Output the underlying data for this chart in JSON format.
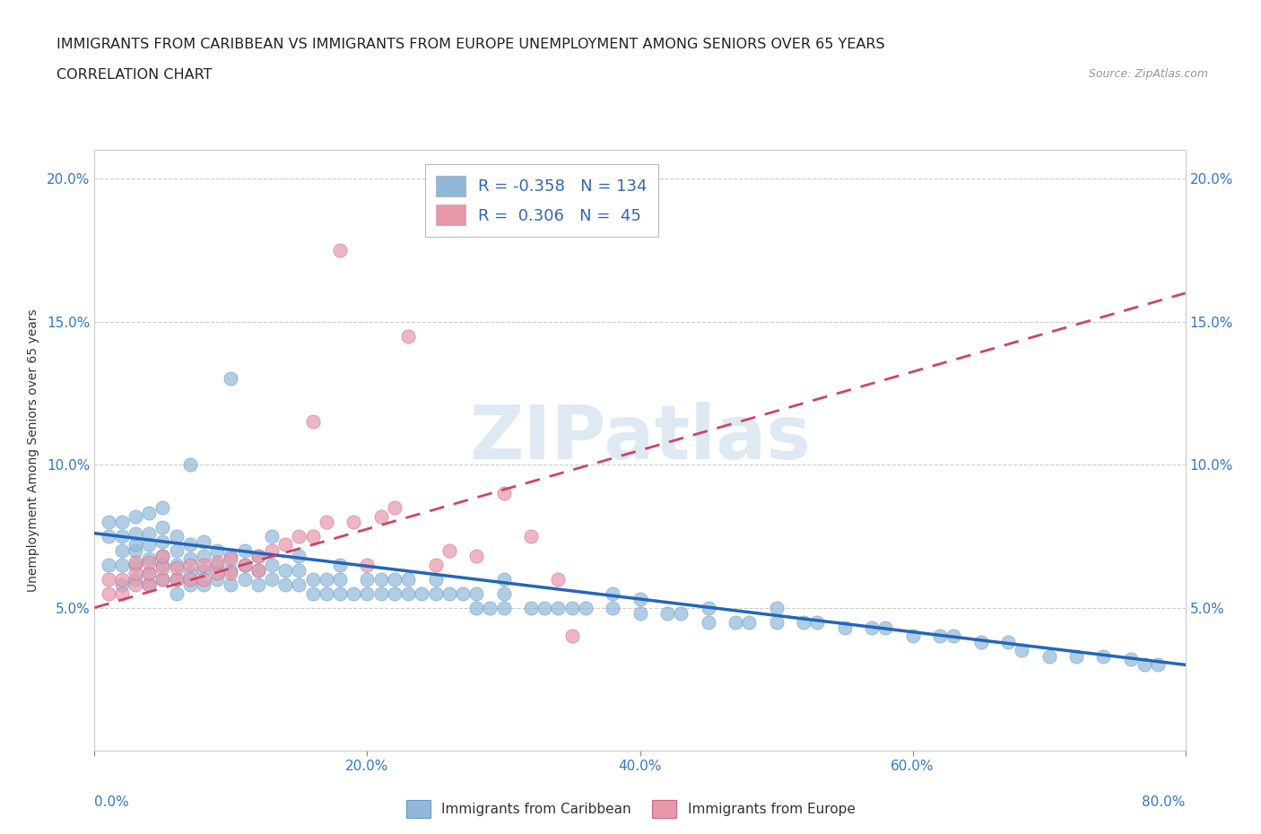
{
  "title_line1": "IMMIGRANTS FROM CARIBBEAN VS IMMIGRANTS FROM EUROPE UNEMPLOYMENT AMONG SENIORS OVER 65 YEARS",
  "title_line2": "CORRELATION CHART",
  "source_text": "Source: ZipAtlas.com",
  "ylabel": "Unemployment Among Seniors over 65 years",
  "xmin": 0.0,
  "xmax": 0.8,
  "ymin": 0.0,
  "ymax": 0.21,
  "ytick_values": [
    0.05,
    0.1,
    0.15,
    0.2
  ],
  "ytick_labels": [
    "5.0%",
    "10.0%",
    "15.0%",
    "20.0%"
  ],
  "xtick_values": [
    0.0,
    0.2,
    0.4,
    0.6,
    0.8
  ],
  "xtick_labels": [
    "0.0%",
    "20.0%",
    "40.0%",
    "60.0%",
    "80.0%"
  ],
  "watermark": "ZIPatlas",
  "caribbean_color": "#90b8d8",
  "europe_color": "#e898a8",
  "caribbean_line_color": "#2266bb",
  "europe_line_color": "#cc4466",
  "background_color": "#ffffff",
  "grid_color": "#d8d8d8",
  "title_fontsize": 11.5,
  "axis_label_fontsize": 10,
  "tick_fontsize": 11,
  "legend_fontsize": 13,
  "source_fontsize": 9,
  "caribbean_scatter_x": [
    0.01,
    0.01,
    0.01,
    0.02,
    0.02,
    0.02,
    0.02,
    0.02,
    0.03,
    0.03,
    0.03,
    0.03,
    0.03,
    0.03,
    0.04,
    0.04,
    0.04,
    0.04,
    0.04,
    0.04,
    0.05,
    0.05,
    0.05,
    0.05,
    0.05,
    0.05,
    0.06,
    0.06,
    0.06,
    0.06,
    0.06,
    0.07,
    0.07,
    0.07,
    0.07,
    0.07,
    0.08,
    0.08,
    0.08,
    0.08,
    0.09,
    0.09,
    0.09,
    0.1,
    0.1,
    0.1,
    0.1,
    0.11,
    0.11,
    0.11,
    0.12,
    0.12,
    0.12,
    0.13,
    0.13,
    0.13,
    0.14,
    0.14,
    0.15,
    0.15,
    0.15,
    0.16,
    0.16,
    0.17,
    0.17,
    0.18,
    0.18,
    0.18,
    0.19,
    0.2,
    0.2,
    0.21,
    0.21,
    0.22,
    0.22,
    0.23,
    0.23,
    0.24,
    0.25,
    0.25,
    0.26,
    0.27,
    0.28,
    0.28,
    0.29,
    0.3,
    0.3,
    0.3,
    0.32,
    0.33,
    0.34,
    0.35,
    0.36,
    0.38,
    0.38,
    0.4,
    0.4,
    0.42,
    0.43,
    0.45,
    0.45,
    0.47,
    0.48,
    0.5,
    0.5,
    0.52,
    0.53,
    0.55,
    0.57,
    0.58,
    0.6,
    0.62,
    0.63,
    0.65,
    0.67,
    0.68,
    0.7,
    0.72,
    0.74,
    0.76,
    0.77,
    0.78
  ],
  "caribbean_scatter_y": [
    0.065,
    0.075,
    0.08,
    0.058,
    0.065,
    0.07,
    0.075,
    0.08,
    0.06,
    0.065,
    0.07,
    0.072,
    0.076,
    0.082,
    0.058,
    0.062,
    0.067,
    0.072,
    0.076,
    0.083,
    0.06,
    0.065,
    0.068,
    0.073,
    0.078,
    0.085,
    0.055,
    0.06,
    0.065,
    0.07,
    0.075,
    0.058,
    0.062,
    0.067,
    0.072,
    0.1,
    0.058,
    0.063,
    0.068,
    0.073,
    0.06,
    0.065,
    0.07,
    0.058,
    0.063,
    0.068,
    0.13,
    0.06,
    0.065,
    0.07,
    0.058,
    0.063,
    0.068,
    0.06,
    0.065,
    0.075,
    0.058,
    0.063,
    0.058,
    0.063,
    0.068,
    0.055,
    0.06,
    0.055,
    0.06,
    0.055,
    0.06,
    0.065,
    0.055,
    0.055,
    0.06,
    0.055,
    0.06,
    0.055,
    0.06,
    0.055,
    0.06,
    0.055,
    0.055,
    0.06,
    0.055,
    0.055,
    0.05,
    0.055,
    0.05,
    0.05,
    0.055,
    0.06,
    0.05,
    0.05,
    0.05,
    0.05,
    0.05,
    0.05,
    0.055,
    0.048,
    0.053,
    0.048,
    0.048,
    0.045,
    0.05,
    0.045,
    0.045,
    0.045,
    0.05,
    0.045,
    0.045,
    0.043,
    0.043,
    0.043,
    0.04,
    0.04,
    0.04,
    0.038,
    0.038,
    0.035,
    0.033,
    0.033,
    0.033,
    0.032,
    0.03,
    0.03
  ],
  "europe_scatter_x": [
    0.01,
    0.01,
    0.02,
    0.02,
    0.03,
    0.03,
    0.03,
    0.04,
    0.04,
    0.04,
    0.05,
    0.05,
    0.05,
    0.06,
    0.06,
    0.07,
    0.07,
    0.08,
    0.08,
    0.09,
    0.09,
    0.1,
    0.1,
    0.11,
    0.12,
    0.12,
    0.13,
    0.14,
    0.15,
    0.16,
    0.16,
    0.17,
    0.18,
    0.19,
    0.2,
    0.21,
    0.22,
    0.23,
    0.25,
    0.26,
    0.28,
    0.3,
    0.32,
    0.34,
    0.35
  ],
  "europe_scatter_y": [
    0.055,
    0.06,
    0.055,
    0.06,
    0.058,
    0.062,
    0.066,
    0.058,
    0.062,
    0.066,
    0.06,
    0.064,
    0.068,
    0.06,
    0.064,
    0.06,
    0.065,
    0.06,
    0.065,
    0.062,
    0.066,
    0.062,
    0.067,
    0.065,
    0.063,
    0.068,
    0.07,
    0.072,
    0.075,
    0.075,
    0.115,
    0.08,
    0.175,
    0.08,
    0.065,
    0.082,
    0.085,
    0.145,
    0.065,
    0.07,
    0.068,
    0.09,
    0.075,
    0.06,
    0.04
  ],
  "caribbean_trend_x": [
    0.0,
    0.8
  ],
  "caribbean_trend_y": [
    0.076,
    0.03
  ],
  "europe_trend_x": [
    0.0,
    0.8
  ],
  "europe_trend_y": [
    0.05,
    0.16
  ]
}
